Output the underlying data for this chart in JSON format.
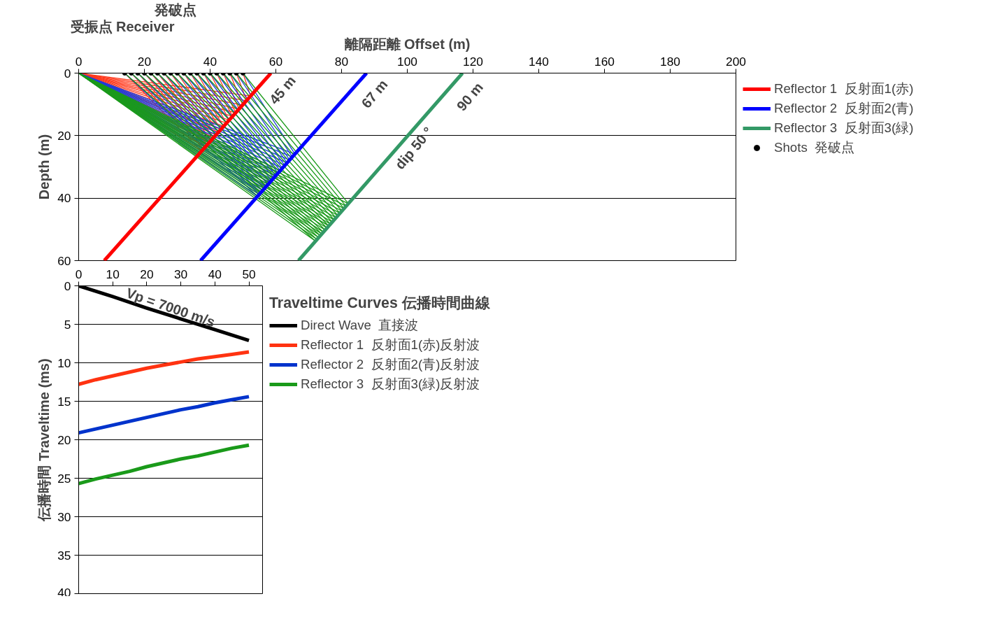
{
  "chart_data": [
    {
      "type": "line",
      "xlabel": "離隔距離 Offset (m)",
      "ylabel": "Depth (m)",
      "xlim": [
        0,
        200
      ],
      "ylim": [
        60,
        0
      ],
      "xticks": [
        0,
        20,
        40,
        60,
        80,
        100,
        120,
        140,
        160,
        180,
        200
      ],
      "yticks": [
        0,
        20,
        40,
        60
      ],
      "grid": "y",
      "legend": "right",
      "annotations": [
        "受振点 Receiver",
        "発破点",
        "45 m",
        "67 m",
        "90 m",
        "dip 50 °"
      ],
      "series": [
        {
          "type": "line",
          "color": "#ff3b1f",
          "x": [
            0,
            37.4,
            14,
            null,
            0,
            38.0,
            16,
            null,
            0,
            38.6,
            18,
            null,
            0,
            39.2,
            20,
            null,
            0,
            39.8,
            22,
            null,
            0,
            40.4,
            24,
            null,
            0,
            41.1,
            26,
            null,
            0,
            41.8,
            28,
            null,
            0,
            42.5,
            30,
            null,
            0,
            43.3,
            32,
            null,
            0,
            44.1,
            34,
            null,
            0,
            45.0,
            36,
            null,
            0,
            45.8,
            38,
            null,
            0,
            46.8,
            40,
            null,
            0,
            47.8,
            42,
            null,
            0,
            48.8,
            44,
            null,
            0,
            49.9,
            46,
            null,
            0,
            51.1,
            48,
            null,
            0,
            52.3,
            50
          ],
          "values": [
            0,
            24.9,
            0,
            null,
            0,
            24.3,
            0,
            null,
            0,
            23.6,
            0,
            null,
            0,
            22.9,
            0,
            null,
            0,
            22.2,
            0,
            null,
            0,
            21.4,
            0,
            null,
            0,
            20.6,
            0,
            null,
            0,
            19.8,
            0,
            null,
            0,
            18.9,
            0,
            null,
            0,
            18.0,
            0,
            null,
            0,
            17.0,
            0,
            null,
            0,
            16.0,
            0,
            null,
            0,
            15.0,
            0,
            null,
            0,
            13.8,
            0,
            null,
            0,
            12.7,
            0,
            null,
            0,
            11.5,
            0,
            null,
            0,
            10.2,
            0,
            null,
            0,
            8.8,
            0,
            null,
            0,
            7.3,
            0
          ]
        },
        {
          "type": "line",
          "color": "#1f3bdc",
          "x": [
            0,
            54.4,
            14,
            null,
            0,
            54.9,
            16,
            null,
            0,
            55.4,
            18,
            null,
            0,
            56.0,
            20,
            null,
            0,
            56.5,
            22,
            null,
            0,
            57.0,
            24,
            null,
            0,
            57.6,
            26,
            null,
            0,
            58.2,
            28,
            null,
            0,
            58.8,
            30,
            null,
            0,
            59.4,
            32,
            null,
            0,
            60.0,
            34,
            null,
            0,
            60.7,
            36,
            null,
            0,
            61.3,
            38,
            null,
            0,
            62.0,
            40,
            null,
            0,
            62.7,
            42,
            null,
            0,
            63.4,
            44,
            null,
            0,
            64.2,
            46,
            null,
            0,
            65.0,
            48,
            null,
            0,
            65.8,
            50
          ],
          "values": [
            0,
            39.4,
            0,
            null,
            0,
            38.8,
            0,
            null,
            0,
            38.2,
            0,
            null,
            0,
            37.6,
            0,
            null,
            0,
            36.9,
            0,
            null,
            0,
            36.3,
            0,
            null,
            0,
            35.6,
            0,
            null,
            0,
            35.0,
            0,
            null,
            0,
            34.3,
            0,
            null,
            0,
            33.5,
            0,
            null,
            0,
            32.8,
            0,
            null,
            0,
            32.0,
            0,
            null,
            0,
            31.2,
            0,
            null,
            0,
            30.4,
            0,
            null,
            0,
            29.5,
            0,
            null,
            0,
            28.7,
            0,
            null,
            0,
            27.8,
            0,
            null,
            0,
            26.8,
            0,
            null,
            0,
            25.9,
            0
          ]
        },
        {
          "type": "line",
          "color": "#1a9a1a",
          "x": [
            0,
            72.1,
            14,
            null,
            0,
            72.5,
            16,
            null,
            0,
            73.0,
            18,
            null,
            0,
            73.5,
            20,
            null,
            0,
            74.0,
            22,
            null,
            0,
            74.5,
            24,
            null,
            0,
            75.0,
            26,
            null,
            0,
            75.6,
            28,
            null,
            0,
            76.1,
            30,
            null,
            0,
            76.6,
            32,
            null,
            0,
            77.2,
            34,
            null,
            0,
            77.8,
            36,
            null,
            0,
            78.3,
            38,
            null,
            0,
            78.8,
            40,
            null,
            0,
            79.5,
            42,
            null,
            0,
            80.1,
            44,
            null,
            0,
            80.7,
            46,
            null,
            0,
            81.3,
            48,
            null,
            0,
            82.1,
            50
          ],
          "values": [
            0,
            53.8,
            0,
            null,
            0,
            53.2,
            0,
            null,
            0,
            52.6,
            0,
            null,
            0,
            52.0,
            0,
            null,
            0,
            51.5,
            0,
            null,
            0,
            50.9,
            0,
            null,
            0,
            50.2,
            0,
            null,
            0,
            49.6,
            0,
            null,
            0,
            48.9,
            0,
            null,
            0,
            48.3,
            0,
            null,
            0,
            47.7,
            0,
            null,
            0,
            47.0,
            0,
            null,
            0,
            46.3,
            0,
            null,
            0,
            45.5,
            0,
            null,
            0,
            44.8,
            0,
            null,
            0,
            44.1,
            0,
            null,
            0,
            43.3,
            0,
            null,
            0,
            42.5,
            0,
            null,
            0,
            41.8,
            0
          ]
        },
        {
          "type": "line",
          "name": "Reflector 1  反射面1(赤)",
          "color": "#ff0000",
          "x": [
            58.5,
            7.8
          ],
          "values": [
            0,
            60
          ]
        },
        {
          "type": "line",
          "name": "Reflector 2  反射面2(青)",
          "color": "#0000ff",
          "x": [
            87.6,
            37.1
          ],
          "values": [
            0,
            60
          ]
        },
        {
          "type": "line",
          "name": "Reflector 3  反射面3(緑)",
          "color": "#339966",
          "x": [
            116.8,
            66.9
          ],
          "values": [
            0,
            60
          ]
        },
        {
          "type": "scatter",
          "name": "Shots  発破点",
          "color": "#000000",
          "marker": "circle",
          "x": [
            14,
            16,
            18,
            20,
            22,
            24,
            26,
            28,
            30,
            32,
            34,
            36,
            38,
            40,
            42,
            44,
            46,
            48,
            50
          ],
          "values": [
            0,
            0,
            0,
            0,
            0,
            0,
            0,
            0,
            0,
            0,
            0,
            0,
            0,
            0,
            0,
            0,
            0,
            0,
            0
          ]
        }
      ]
    },
    {
      "type": "line",
      "title": "Traveltime Curves 伝播時間曲線",
      "ylabel": "伝播時間 Traveltime (ms)",
      "xlim": [
        0,
        54
      ],
      "ylim": [
        40,
        0
      ],
      "xticks": [
        0,
        10,
        20,
        30,
        40,
        50
      ],
      "yticks": [
        0,
        5,
        10,
        15,
        20,
        25,
        30,
        35,
        40
      ],
      "grid": "y",
      "legend": "right",
      "annotations": [
        "Vp = 7000 m/s"
      ],
      "series": [
        {
          "name": "Direct Wave  直接波",
          "color": "#000000",
          "x": [
            0,
            10,
            20,
            30,
            40,
            50
          ],
          "values": [
            0,
            1.4,
            2.9,
            4.3,
            5.7,
            7.1
          ]
        },
        {
          "name": "Reflector 1  反射面1(赤)反射波",
          "color": "#ff3311",
          "x": [
            0,
            5,
            10,
            15,
            20,
            25,
            30,
            35,
            40,
            45,
            50
          ],
          "values": [
            12.8,
            12.2,
            11.7,
            11.2,
            10.7,
            10.3,
            9.9,
            9.5,
            9.2,
            8.9,
            8.6
          ]
        },
        {
          "name": "Reflector 2  反射面2(青)反射波",
          "color": "#0033cc",
          "x": [
            0,
            5,
            10,
            15,
            20,
            25,
            30,
            35,
            40,
            45,
            50
          ],
          "values": [
            19.1,
            18.6,
            18.1,
            17.6,
            17.1,
            16.6,
            16.1,
            15.7,
            15.2,
            14.8,
            14.4
          ]
        },
        {
          "name": "Reflector 3  反射面3(緑)反射波",
          "color": "#1a9a1a",
          "x": [
            0,
            5,
            10,
            15,
            20,
            25,
            30,
            35,
            40,
            45,
            50
          ],
          "values": [
            25.7,
            25.1,
            24.6,
            24.1,
            23.5,
            23.0,
            22.5,
            22.1,
            21.6,
            21.1,
            20.7
          ]
        }
      ]
    }
  ]
}
